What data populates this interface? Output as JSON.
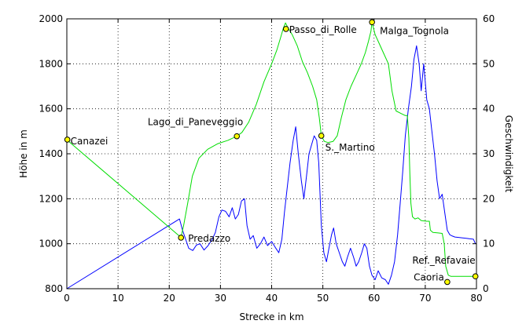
{
  "chart_data": {
    "type": "line",
    "xlabel": "Strecke in km",
    "ylabel": "Höhe in m",
    "y2label": "Geschwindigkeit",
    "xlim": [
      0,
      80
    ],
    "ylim": [
      800,
      2000
    ],
    "y2lim": [
      0,
      60
    ],
    "x_ticks": [
      "0",
      "10",
      "20",
      "30",
      "40",
      "50",
      "60",
      "70",
      "80"
    ],
    "y_ticks": [
      "800",
      "1000",
      "1200",
      "1400",
      "1600",
      "1800",
      "2000"
    ],
    "y2_ticks": [
      "0",
      "10",
      "20",
      "30",
      "40",
      "50",
      "60"
    ],
    "grid": true,
    "colors": {
      "speed": "#0000ff",
      "altitude": "#00dd00",
      "waypoint": "#ffff00"
    },
    "series": [
      {
        "axis": "y2",
        "color": "#0000ff",
        "points": [
          [
            0,
            0
          ],
          [
            22,
            15.5
          ],
          [
            22.6,
            13
          ],
          [
            23.2,
            11
          ],
          [
            23.8,
            9
          ],
          [
            24.6,
            8.5
          ],
          [
            25.3,
            9.7
          ],
          [
            26,
            10
          ],
          [
            26.8,
            8.6
          ],
          [
            27.6,
            9.6
          ],
          [
            28.4,
            11
          ],
          [
            29,
            12.5
          ],
          [
            29.7,
            16
          ],
          [
            30.3,
            17.5
          ],
          [
            31,
            17.2
          ],
          [
            31.7,
            16
          ],
          [
            32.3,
            18
          ],
          [
            32.9,
            15.5
          ],
          [
            33.5,
            16.5
          ],
          [
            34.1,
            19.5
          ],
          [
            34.7,
            20
          ],
          [
            35.2,
            14
          ],
          [
            35.8,
            11
          ],
          [
            36.4,
            11.8
          ],
          [
            37.1,
            9
          ],
          [
            37.8,
            10
          ],
          [
            38.5,
            11.5
          ],
          [
            39.2,
            9.6
          ],
          [
            40,
            10.5
          ],
          [
            40.7,
            9.2
          ],
          [
            41.4,
            8
          ],
          [
            42,
            11
          ],
          [
            42.5,
            17
          ],
          [
            43,
            22
          ],
          [
            43.6,
            28
          ],
          [
            44.2,
            33
          ],
          [
            44.7,
            36
          ],
          [
            45.2,
            30
          ],
          [
            45.8,
            24
          ],
          [
            46.3,
            20
          ],
          [
            46.8,
            25
          ],
          [
            47.3,
            30
          ],
          [
            47.8,
            32
          ],
          [
            48.3,
            34
          ],
          [
            48.8,
            33
          ],
          [
            49.2,
            28
          ],
          [
            49.7,
            14
          ],
          [
            50.2,
            8
          ],
          [
            50.7,
            6
          ],
          [
            51.2,
            9
          ],
          [
            51.7,
            12
          ],
          [
            52.1,
            13.5
          ],
          [
            52.6,
            10
          ],
          [
            53.2,
            8
          ],
          [
            53.8,
            6
          ],
          [
            54.3,
            5
          ],
          [
            54.8,
            7
          ],
          [
            55.4,
            9
          ],
          [
            56,
            7
          ],
          [
            56.5,
            5
          ],
          [
            57,
            6
          ],
          [
            57.6,
            8
          ],
          [
            58.1,
            10
          ],
          [
            58.6,
            9
          ],
          [
            59.1,
            5
          ],
          [
            59.6,
            3
          ],
          [
            60.2,
            2
          ],
          [
            60.8,
            4
          ],
          [
            61.5,
            2.4
          ],
          [
            62.2,
            2
          ],
          [
            62.8,
            1
          ],
          [
            63.4,
            3
          ],
          [
            64,
            6
          ],
          [
            64.6,
            12
          ],
          [
            65.1,
            19
          ],
          [
            65.6,
            26
          ],
          [
            66.1,
            34
          ],
          [
            66.7,
            40
          ],
          [
            67.3,
            45
          ],
          [
            67.8,
            51
          ],
          [
            68.3,
            54
          ],
          [
            68.8,
            50
          ],
          [
            69.2,
            44
          ],
          [
            69.7,
            50
          ],
          [
            70.3,
            42
          ],
          [
            70.8,
            40
          ],
          [
            71.3,
            35
          ],
          [
            71.8,
            30
          ],
          [
            72.3,
            24
          ],
          [
            72.8,
            20
          ],
          [
            73.3,
            21
          ],
          [
            73.8,
            17
          ],
          [
            74.3,
            13
          ],
          [
            74.8,
            12
          ],
          [
            75.3,
            11.7
          ],
          [
            75.8,
            11.5
          ],
          [
            76.5,
            11.4
          ],
          [
            77.3,
            11.3
          ],
          [
            78,
            11.2
          ],
          [
            78.7,
            11.1
          ],
          [
            79.4,
            11
          ],
          [
            79.8,
            10
          ]
        ]
      },
      {
        "axis": "y",
        "color": "#00dd00",
        "points": [
          [
            0,
            1462
          ],
          [
            22.3,
            1028
          ],
          [
            22.8,
            1080
          ],
          [
            23.6,
            1180
          ],
          [
            24.5,
            1300
          ],
          [
            25.8,
            1380
          ],
          [
            27.5,
            1420
          ],
          [
            29.5,
            1445
          ],
          [
            31.5,
            1460
          ],
          [
            33.2,
            1478
          ],
          [
            34.2,
            1495
          ],
          [
            35.5,
            1540
          ],
          [
            37,
            1620
          ],
          [
            38.5,
            1720
          ],
          [
            40,
            1800
          ],
          [
            41,
            1860
          ],
          [
            41.8,
            1920
          ],
          [
            42.3,
            1960
          ],
          [
            42.7,
            1982
          ],
          [
            43.2,
            1960
          ],
          [
            44,
            1930
          ],
          [
            45,
            1880
          ],
          [
            46,
            1810
          ],
          [
            47,
            1760
          ],
          [
            48,
            1700
          ],
          [
            48.8,
            1640
          ],
          [
            49.3,
            1560
          ],
          [
            49.7,
            1480
          ],
          [
            50.3,
            1455
          ],
          [
            51,
            1450
          ],
          [
            52,
            1455
          ],
          [
            52.8,
            1480
          ],
          [
            53.6,
            1560
          ],
          [
            54.5,
            1640
          ],
          [
            55.5,
            1700
          ],
          [
            56.5,
            1750
          ],
          [
            57.5,
            1800
          ],
          [
            58.3,
            1850
          ],
          [
            58.9,
            1900
          ],
          [
            59.4,
            1945
          ],
          [
            59.6,
            1985
          ],
          [
            60.2,
            1930
          ],
          [
            61,
            1890
          ],
          [
            61.8,
            1850
          ],
          [
            62.8,
            1800
          ],
          [
            63.5,
            1680
          ],
          [
            64.3,
            1590
          ],
          [
            65.2,
            1580
          ],
          [
            66.1,
            1570
          ],
          [
            66.5,
            1570
          ],
          [
            66.8,
            1470
          ],
          [
            67,
            1310
          ],
          [
            67.2,
            1180
          ],
          [
            67.5,
            1120
          ],
          [
            68,
            1110
          ],
          [
            68.6,
            1115
          ],
          [
            69.2,
            1103
          ],
          [
            70.2,
            1100
          ],
          [
            70.8,
            1100
          ],
          [
            71,
            1060
          ],
          [
            71.5,
            1050
          ],
          [
            72.5,
            1048
          ],
          [
            73.3,
            1046
          ],
          [
            73.7,
            1000
          ],
          [
            74,
            900
          ],
          [
            74.5,
            860
          ],
          [
            75,
            855
          ],
          [
            76,
            855
          ],
          [
            77.5,
            855
          ],
          [
            79,
            855
          ],
          [
            79.8,
            855
          ]
        ]
      }
    ],
    "waypoints": [
      {
        "name": "Canazei",
        "x": 0.1,
        "y": 1463
      },
      {
        "name": "Predazzo",
        "x": 22.3,
        "y": 1027
      },
      {
        "name": "Lago_di_Paneveggio",
        "x": 33.2,
        "y": 1478
      },
      {
        "name": "Passo_di_Rolle",
        "x": 42.8,
        "y": 1955
      },
      {
        "name": "S._Martino",
        "x": 49.7,
        "y": 1480
      },
      {
        "name": "Malga_Tognola",
        "x": 59.6,
        "y": 1985
      },
      {
        "name": "Caoria",
        "x": 74.3,
        "y": 830
      },
      {
        "name": "Ref._Refavaie",
        "x": 79.8,
        "y": 855
      }
    ]
  }
}
